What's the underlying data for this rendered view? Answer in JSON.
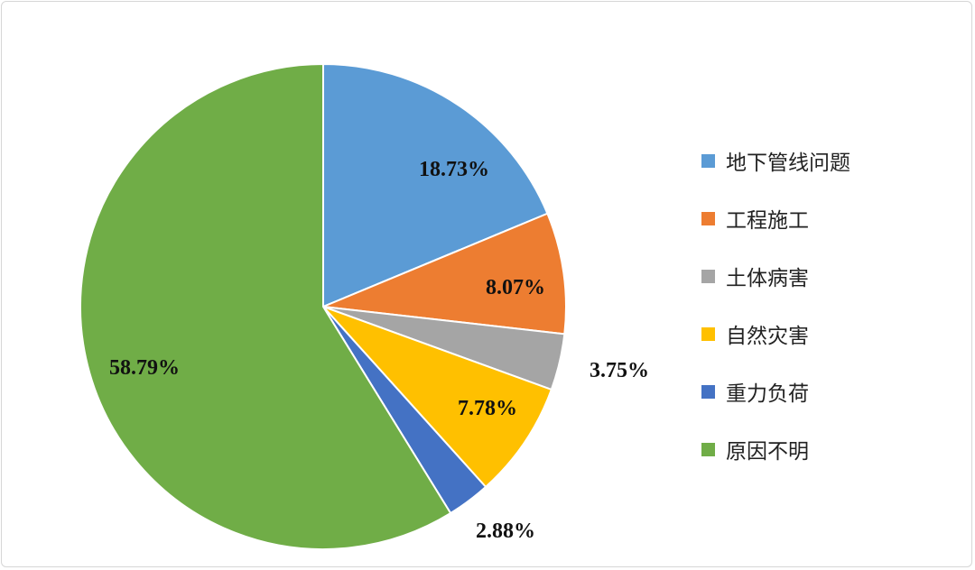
{
  "chart_data": {
    "type": "pie",
    "start": "top",
    "direction": "clockwise",
    "legend_position": "right",
    "categories": [
      "地下管线问题",
      "工程施工",
      "土体病害",
      "自然灾害",
      "重力负荷",
      "原因不明"
    ],
    "values": [
      18.73,
      8.07,
      3.75,
      7.78,
      2.88,
      58.79
    ],
    "data_labels": [
      "18.73%",
      "8.07%",
      "3.75%",
      "7.78%",
      "2.88%",
      "58.79%"
    ],
    "colors": [
      "#5b9bd5",
      "#ed7d31",
      "#a5a5a5",
      "#ffc000",
      "#4472c4",
      "#70ad47"
    ]
  }
}
